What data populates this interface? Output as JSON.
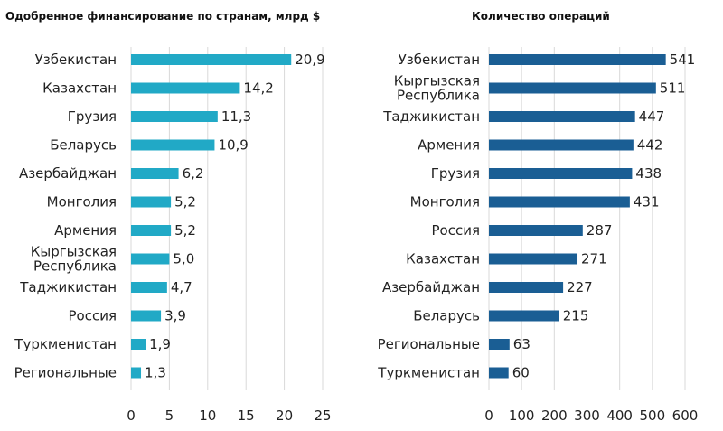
{
  "chart_data": [
    {
      "type": "bar",
      "orientation": "horizontal",
      "title": "Одобренное финансирование по странам, млрд $",
      "categories": [
        "Узбекистан",
        "Казахстан",
        "Грузия",
        "Беларусь",
        "Азербайджан",
        "Монголия",
        "Армения",
        "Кыргызская Республика",
        "Таджикистан",
        "Россия",
        "Туркменистан",
        "Региональные"
      ],
      "values": [
        20.9,
        14.2,
        11.3,
        10.9,
        6.2,
        5.2,
        5.2,
        5.0,
        4.7,
        3.9,
        1.9,
        1.3
      ],
      "value_labels": [
        "20,9",
        "14,2",
        "11,3",
        "10,9",
        "6,2",
        "5,2",
        "5,2",
        "5,0",
        "4,7",
        "3,9",
        "1,9",
        "1,3"
      ],
      "xlim": [
        0,
        25
      ],
      "ticks": [
        0,
        5,
        10,
        15,
        20,
        25
      ],
      "tick_labels": [
        "0",
        "5",
        "10",
        "15",
        "20",
        "25"
      ],
      "bar_color": "#21a9c6",
      "grid": true
    },
    {
      "type": "bar",
      "orientation": "horizontal",
      "title": "Количество операций",
      "categories": [
        "Узбекистан",
        "Кыргызская Республика",
        "Таджикистан",
        "Армения",
        "Грузия",
        "Монголия",
        "Россия",
        "Казахстан",
        "Азербайджан",
        "Беларусь",
        "Региональные",
        "Туркменистан"
      ],
      "values": [
        541,
        511,
        447,
        442,
        438,
        431,
        287,
        271,
        227,
        215,
        63,
        60
      ],
      "value_labels": [
        "541",
        "511",
        "447",
        "442",
        "438",
        "431",
        "287",
        "271",
        "227",
        "215",
        "63",
        "60"
      ],
      "xlim": [
        0,
        600
      ],
      "ticks": [
        0,
        100,
        200,
        300,
        400,
        500,
        600
      ],
      "tick_labels": [
        "0",
        "100",
        "200",
        "300",
        "400",
        "500",
        "600"
      ],
      "bar_color": "#1a5e94",
      "grid": true
    }
  ]
}
